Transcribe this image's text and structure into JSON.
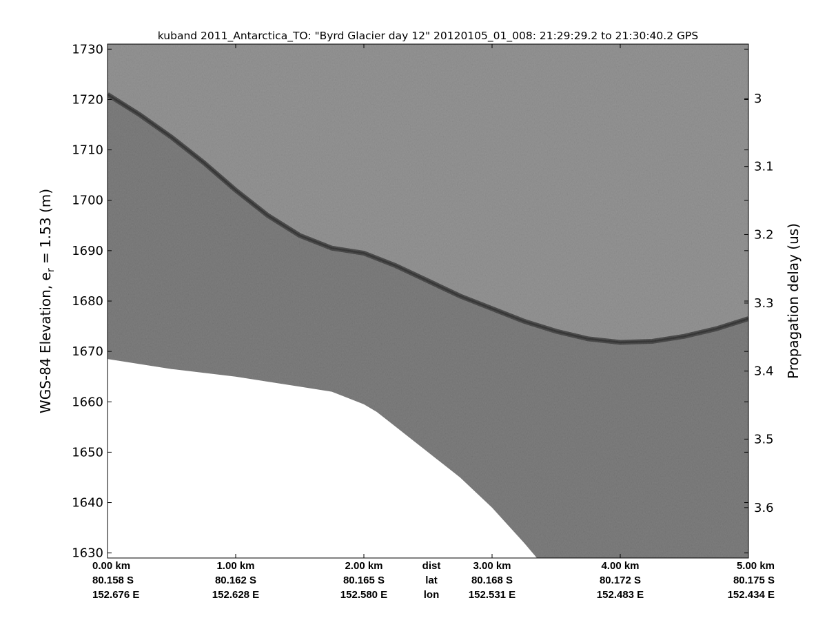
{
  "chart_data": {
    "type": "heatmap",
    "title": "kuband 2011_Antarctica_TO: \"Byrd Glacier day 12\"  20120105_01_008: 21:29:29.2 to 21:30:40.2 GPS",
    "ylabel_main": "WGS-84 Elevation, e",
    "ylabel_sub": "r",
    "ylabel_tail": " = 1.53 (m)",
    "y2label": "Propagation delay (us)",
    "x_km_range": [
      0,
      5
    ],
    "y_range_m": [
      1629,
      1731
    ],
    "y_ticks": [
      1630,
      1640,
      1650,
      1660,
      1670,
      1680,
      1690,
      1700,
      1710,
      1720,
      1730
    ],
    "y2_ticks": [
      {
        "label": "3",
        "elev": 1720.2
      },
      {
        "label": "3.1",
        "elev": 1706.7
      },
      {
        "label": "3.2",
        "elev": 1693.2
      },
      {
        "label": "3.3",
        "elev": 1679.6
      },
      {
        "label": "3.4",
        "elev": 1666.1
      },
      {
        "label": "3.5",
        "elev": 1652.6
      },
      {
        "label": "3.6",
        "elev": 1639.0
      }
    ],
    "x_ticks": [
      {
        "km": 0,
        "dist": "0.00 km",
        "lat": "80.158 S",
        "lon": "152.676 E"
      },
      {
        "km": 1,
        "dist": "1.00 km",
        "lat": "80.162 S",
        "lon": "152.628 E"
      },
      {
        "km": 2,
        "dist": "2.00 km",
        "lat": "80.165 S",
        "lon": "152.580 E"
      },
      {
        "km": 3,
        "dist": "3.00 km",
        "lat": "80.168 S",
        "lon": "152.531 E"
      },
      {
        "km": 4,
        "dist": "4.00 km",
        "lat": "80.172 S",
        "lon": "152.483 E"
      },
      {
        "km": 5,
        "dist": "5.00 km",
        "lat": "80.175 S",
        "lon": "152.434 E"
      }
    ],
    "row_labels": {
      "dist": "dist",
      "lat": "lat",
      "lon": "lon",
      "km": 2.5
    },
    "surface_elevation": [
      [
        0.0,
        1721
      ],
      [
        0.25,
        1717
      ],
      [
        0.5,
        1712.5
      ],
      [
        0.75,
        1707.5
      ],
      [
        1.0,
        1702
      ],
      [
        1.25,
        1697
      ],
      [
        1.5,
        1693
      ],
      [
        1.75,
        1690.5
      ],
      [
        2.0,
        1689.5
      ],
      [
        2.25,
        1687
      ],
      [
        2.5,
        1684
      ],
      [
        2.75,
        1681
      ],
      [
        3.0,
        1678.5
      ],
      [
        3.25,
        1676
      ],
      [
        3.5,
        1674
      ],
      [
        3.75,
        1672.5
      ],
      [
        4.0,
        1671.8
      ],
      [
        4.25,
        1672
      ],
      [
        4.5,
        1673
      ],
      [
        4.75,
        1674.5
      ],
      [
        5.0,
        1676.5
      ]
    ],
    "data_floor_elevation": [
      [
        0.0,
        1668.5
      ],
      [
        0.5,
        1666.5
      ],
      [
        1.0,
        1665
      ],
      [
        1.5,
        1663
      ],
      [
        1.75,
        1662
      ],
      [
        2.0,
        1659.5
      ],
      [
        2.1,
        1658
      ],
      [
        2.25,
        1655
      ],
      [
        2.5,
        1650
      ],
      [
        2.75,
        1645
      ],
      [
        3.0,
        1639
      ],
      [
        3.25,
        1632
      ],
      [
        3.35,
        1629
      ]
    ],
    "colormap": "gray",
    "grid": false
  }
}
